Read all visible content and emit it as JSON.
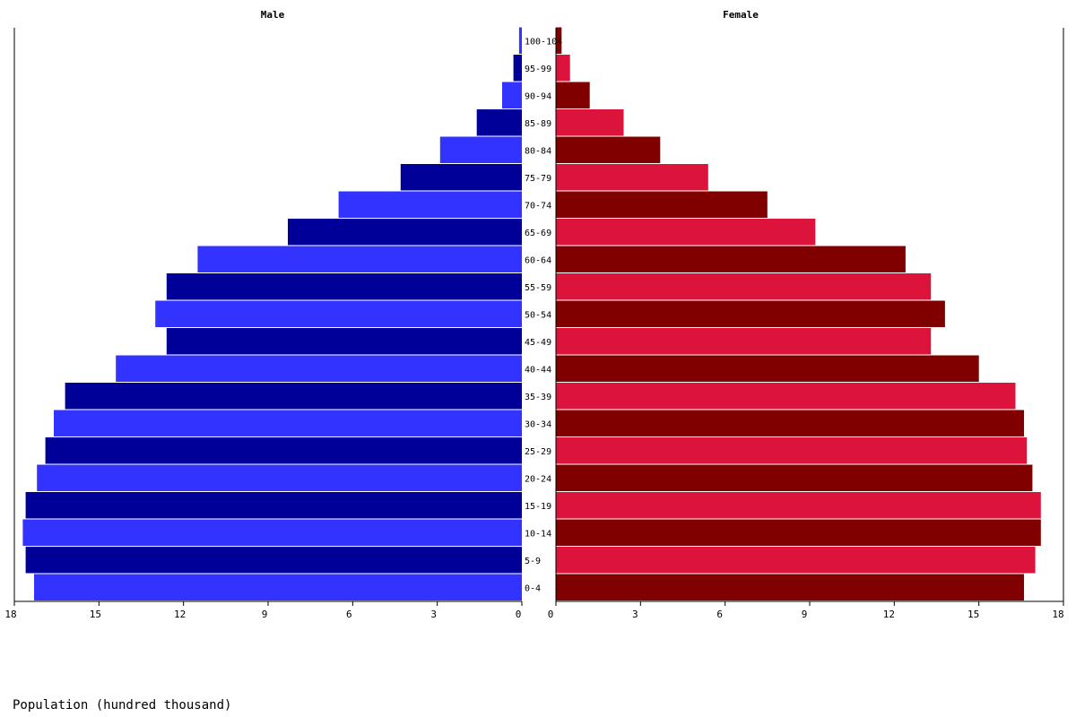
{
  "chart_data": {
    "type": "bar",
    "orientation": "horizontal",
    "panels": [
      {
        "title": "Male",
        "direction": "left"
      },
      {
        "title": "Female",
        "direction": "right"
      }
    ],
    "categories": [
      "0-4",
      "5-9",
      "10-14",
      "15-19",
      "20-24",
      "25-29",
      "30-34",
      "35-39",
      "40-44",
      "45-49",
      "50-54",
      "55-59",
      "60-64",
      "65-69",
      "70-74",
      "75-79",
      "80-84",
      "85-89",
      "90-94",
      "95-99",
      "100-104"
    ],
    "series": [
      {
        "name": "Male",
        "values": [
          17.3,
          17.6,
          17.7,
          17.6,
          17.2,
          16.9,
          16.6,
          16.2,
          14.4,
          12.6,
          13.0,
          12.6,
          11.5,
          8.3,
          6.5,
          4.3,
          2.9,
          1.6,
          0.7,
          0.3,
          0.1
        ],
        "colors": [
          "#3333ff",
          "#000099"
        ]
      },
      {
        "name": "Female",
        "values": [
          16.6,
          17.0,
          17.2,
          17.2,
          16.9,
          16.7,
          16.6,
          16.3,
          15.0,
          13.3,
          13.8,
          13.3,
          12.4,
          9.2,
          7.5,
          5.4,
          3.7,
          2.4,
          1.2,
          0.5,
          0.2
        ],
        "colors": [
          "#800000",
          "#dc143c"
        ]
      }
    ],
    "xlim": [
      0,
      18
    ],
    "xticks": [
      0,
      3,
      6,
      9,
      12,
      15,
      18
    ],
    "xlabel": "Population (hundred thousand)",
    "grid": false,
    "legend": "none"
  }
}
